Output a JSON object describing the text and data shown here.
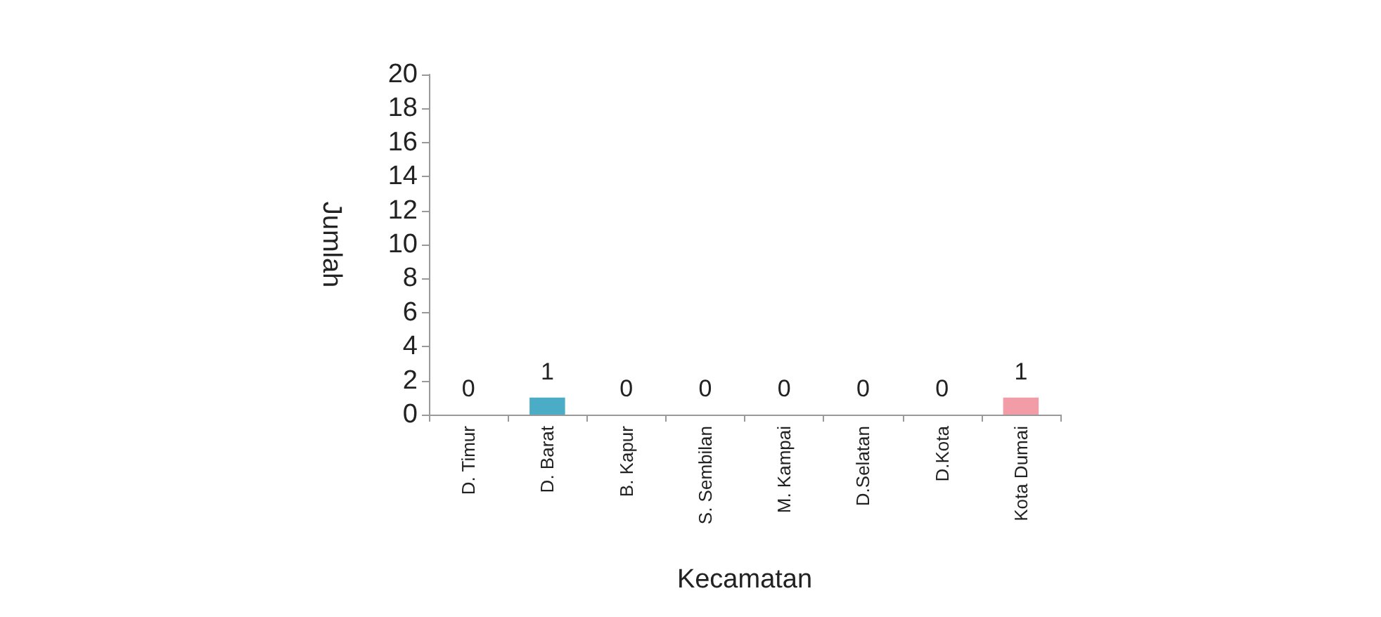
{
  "chart_data": {
    "type": "bar",
    "xlabel": "Kecamatan",
    "ylabel": "Jumlah",
    "categories": [
      "D. Timur",
      "D. Barat",
      "B. Kapur",
      "S. Sembilan",
      "M. Kampai",
      "D.Selatan",
      "D.Kota",
      "Kota Dumai"
    ],
    "values": [
      0,
      1,
      0,
      0,
      0,
      0,
      0,
      1
    ],
    "colors": [
      "#d9434a",
      "#4bacc6",
      "#c9869a",
      "#4f8a3c",
      "#c4a98a",
      "#9bbb3b",
      "#3c7fd8",
      "#f29ca8"
    ],
    "ylim": [
      0,
      20
    ],
    "yticks": [
      0,
      2,
      4,
      6,
      8,
      10,
      12,
      14,
      16,
      18,
      20
    ],
    "grid": false,
    "data_labels": true
  }
}
